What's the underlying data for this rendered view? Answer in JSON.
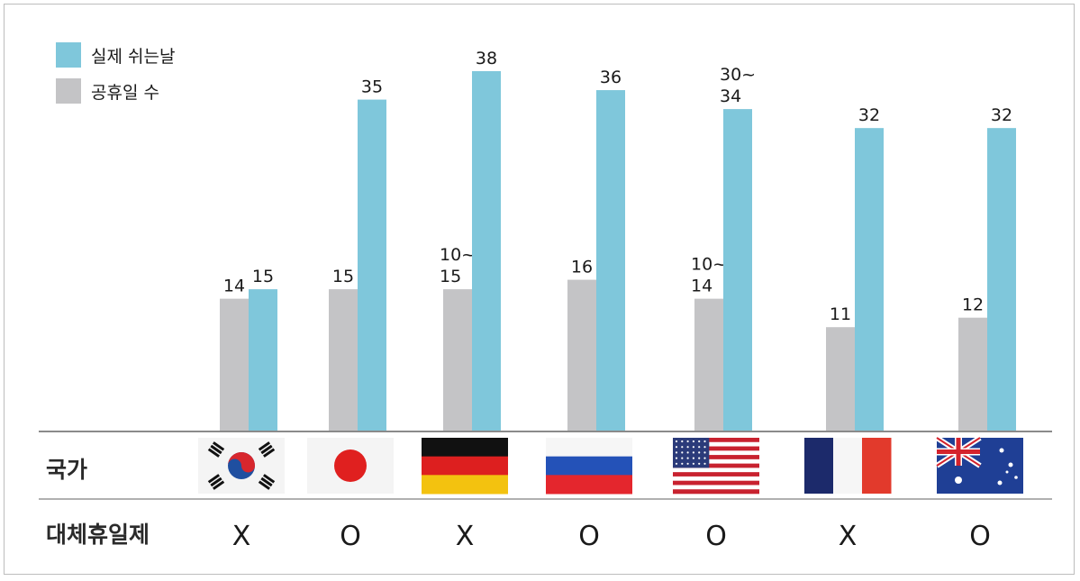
{
  "chart_data": {
    "type": "bar",
    "title": "",
    "xlabel": "",
    "ylabel": "",
    "ylim": [
      0,
      40
    ],
    "grid": false,
    "legend_placement": "top-left",
    "series": [
      {
        "name": "공휴일 수",
        "color": "#c4c4c6",
        "values": [
          14,
          15,
          15,
          16,
          14,
          11,
          12
        ],
        "labels": [
          "14",
          "15",
          "10~\n15",
          "16",
          "10~\n14",
          "11",
          "12"
        ]
      },
      {
        "name": "실제 쉬는날",
        "color": "#7fc7db",
        "values": [
          15,
          35,
          38,
          36,
          34,
          32,
          32
        ],
        "labels": [
          "15",
          "35",
          "38",
          "36",
          "30~\n34",
          "32",
          "32"
        ]
      }
    ],
    "legend_order": [
      1,
      0
    ],
    "rows": {
      "country_label": "국가",
      "substitute_label": "대체휴일제",
      "substitute_values": [
        "X",
        "O",
        "X",
        "O",
        "O",
        "X",
        "O"
      ],
      "flags": [
        "south-korea-flag",
        "japan-flag",
        "germany-flag",
        "russia-flag",
        "usa-flag",
        "france-flag",
        "australia-flag"
      ]
    }
  }
}
